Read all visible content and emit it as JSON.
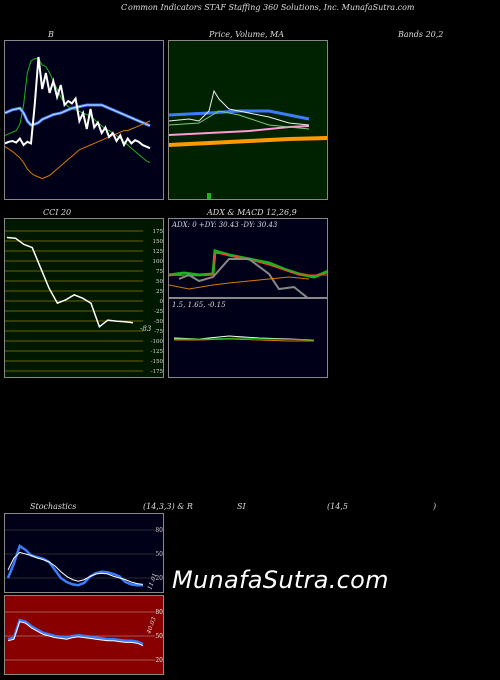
{
  "header": {
    "title_left": "C",
    "title_main": "ommon Indicators STAF Staffing 360 Solutions, Inc. MunafaSutra.com"
  },
  "labels": {
    "bb_top": "B",
    "price_ma": "Price, Volume, MA",
    "bands": "Bands 20,2",
    "cci": "CCI 20",
    "adx_macd": "ADX  & MACD 12,26,9",
    "adx_values": "ADX: 0  +DY: 30.43 -DY: 30.43",
    "macd_values": "1.5,  1.65,  -0.15",
    "stoch": "Stochastics",
    "stoch_params": "(14,3,3) & R",
    "rsi": "SI",
    "rsi_params": "(14,5",
    "rsi_close": ")",
    "cci_last": "-83",
    "stoch_last": "11.01",
    "rsi_last": "40.03",
    "watermark": "MunafaSutra.com"
  },
  "colors": {
    "bb_bg": "#000018",
    "price_bg": "#002200",
    "cci_bg": "#001800",
    "adx_bg": "#000018",
    "stoch_bg": "#000018",
    "rsi_bg": "#880000",
    "green": "#1db31d",
    "blue": "#3c7dff",
    "orange": "#d97a00",
    "white": "#ffffff",
    "grey": "#888888"
  },
  "chart_data": [
    {
      "type": "line",
      "name": "bollinger",
      "series": [
        {
          "values": [
            82,
            84,
            86,
            88,
            96,
            120,
            160,
            175,
            178,
            178,
            170,
            168,
            160,
            150,
            140,
            130,
            122,
            118,
            115,
            114,
            112,
            110,
            108,
            106,
            102,
            98,
            94,
            90,
            88,
            85,
            82,
            78,
            74,
            70,
            66,
            62,
            58,
            54,
            50,
            48
          ]
        },
        {
          "values": [
            110,
            112,
            114,
            115,
            116,
            110,
            100,
            95,
            96,
            98,
            102,
            104,
            106,
            108,
            109,
            110,
            112,
            114,
            116,
            117,
            118,
            119,
            120,
            120,
            120,
            120,
            120,
            118,
            116,
            114,
            112,
            110,
            108,
            106,
            104,
            102,
            100,
            98,
            96,
            94
          ]
        },
        {
          "values": [
            68,
            65,
            62,
            58,
            54,
            48,
            40,
            35,
            32,
            30,
            28,
            30,
            32,
            36,
            40,
            44,
            48,
            52,
            56,
            60,
            64,
            66,
            68,
            70,
            72,
            74,
            76,
            78,
            80,
            82,
            84,
            86,
            88,
            88,
            90,
            92,
            94,
            96,
            98,
            100
          ]
        },
        {
          "values": [
            72,
            74,
            75,
            73,
            78,
            70,
            74,
            72,
            120,
            180,
            140,
            160,
            135,
            150,
            130,
            145,
            120,
            125,
            122,
            128,
            100,
            110,
            90,
            115,
            92,
            98,
            85,
            92,
            80,
            85,
            75,
            82,
            70,
            78,
            72,
            76,
            74,
            70,
            68,
            66
          ]
        }
      ]
    },
    {
      "type": "line",
      "name": "cci",
      "y_ticks": [
        "175",
        "150",
        "125",
        "100",
        "75",
        "50",
        "25",
        "0",
        "-25",
        "-50",
        "-75",
        "-100",
        "-125",
        "-150",
        "-175"
      ],
      "values": [
        170,
        168,
        150,
        140,
        80,
        20,
        -25,
        -15,
        0,
        -10,
        -25,
        -95,
        -75,
        -78,
        -80,
        -83
      ]
    },
    {
      "type": "line",
      "name": "stochastics",
      "y_ticks": [
        "80",
        "50",
        "20"
      ],
      "series": [
        {
          "values": [
            20,
            38,
            60,
            55,
            48,
            46,
            44,
            40,
            30,
            20,
            15,
            12,
            11,
            14,
            22,
            26,
            28,
            27,
            25,
            22,
            15,
            12,
            11,
            11
          ]
        },
        {
          "values": [
            30,
            45,
            52,
            50,
            48,
            45,
            43,
            40,
            35,
            28,
            22,
            18,
            16,
            18,
            22,
            25,
            26,
            25,
            22,
            20,
            18,
            15,
            13,
            12
          ]
        }
      ]
    },
    {
      "type": "line",
      "name": "rsi",
      "y_ticks": [
        "80",
        "50",
        "20"
      ],
      "values": [
        46,
        48,
        70,
        68,
        62,
        58,
        54,
        52,
        50,
        49,
        48,
        50,
        51,
        50,
        49,
        48,
        47,
        46,
        46,
        45,
        44,
        44,
        43,
        40
      ]
    }
  ]
}
